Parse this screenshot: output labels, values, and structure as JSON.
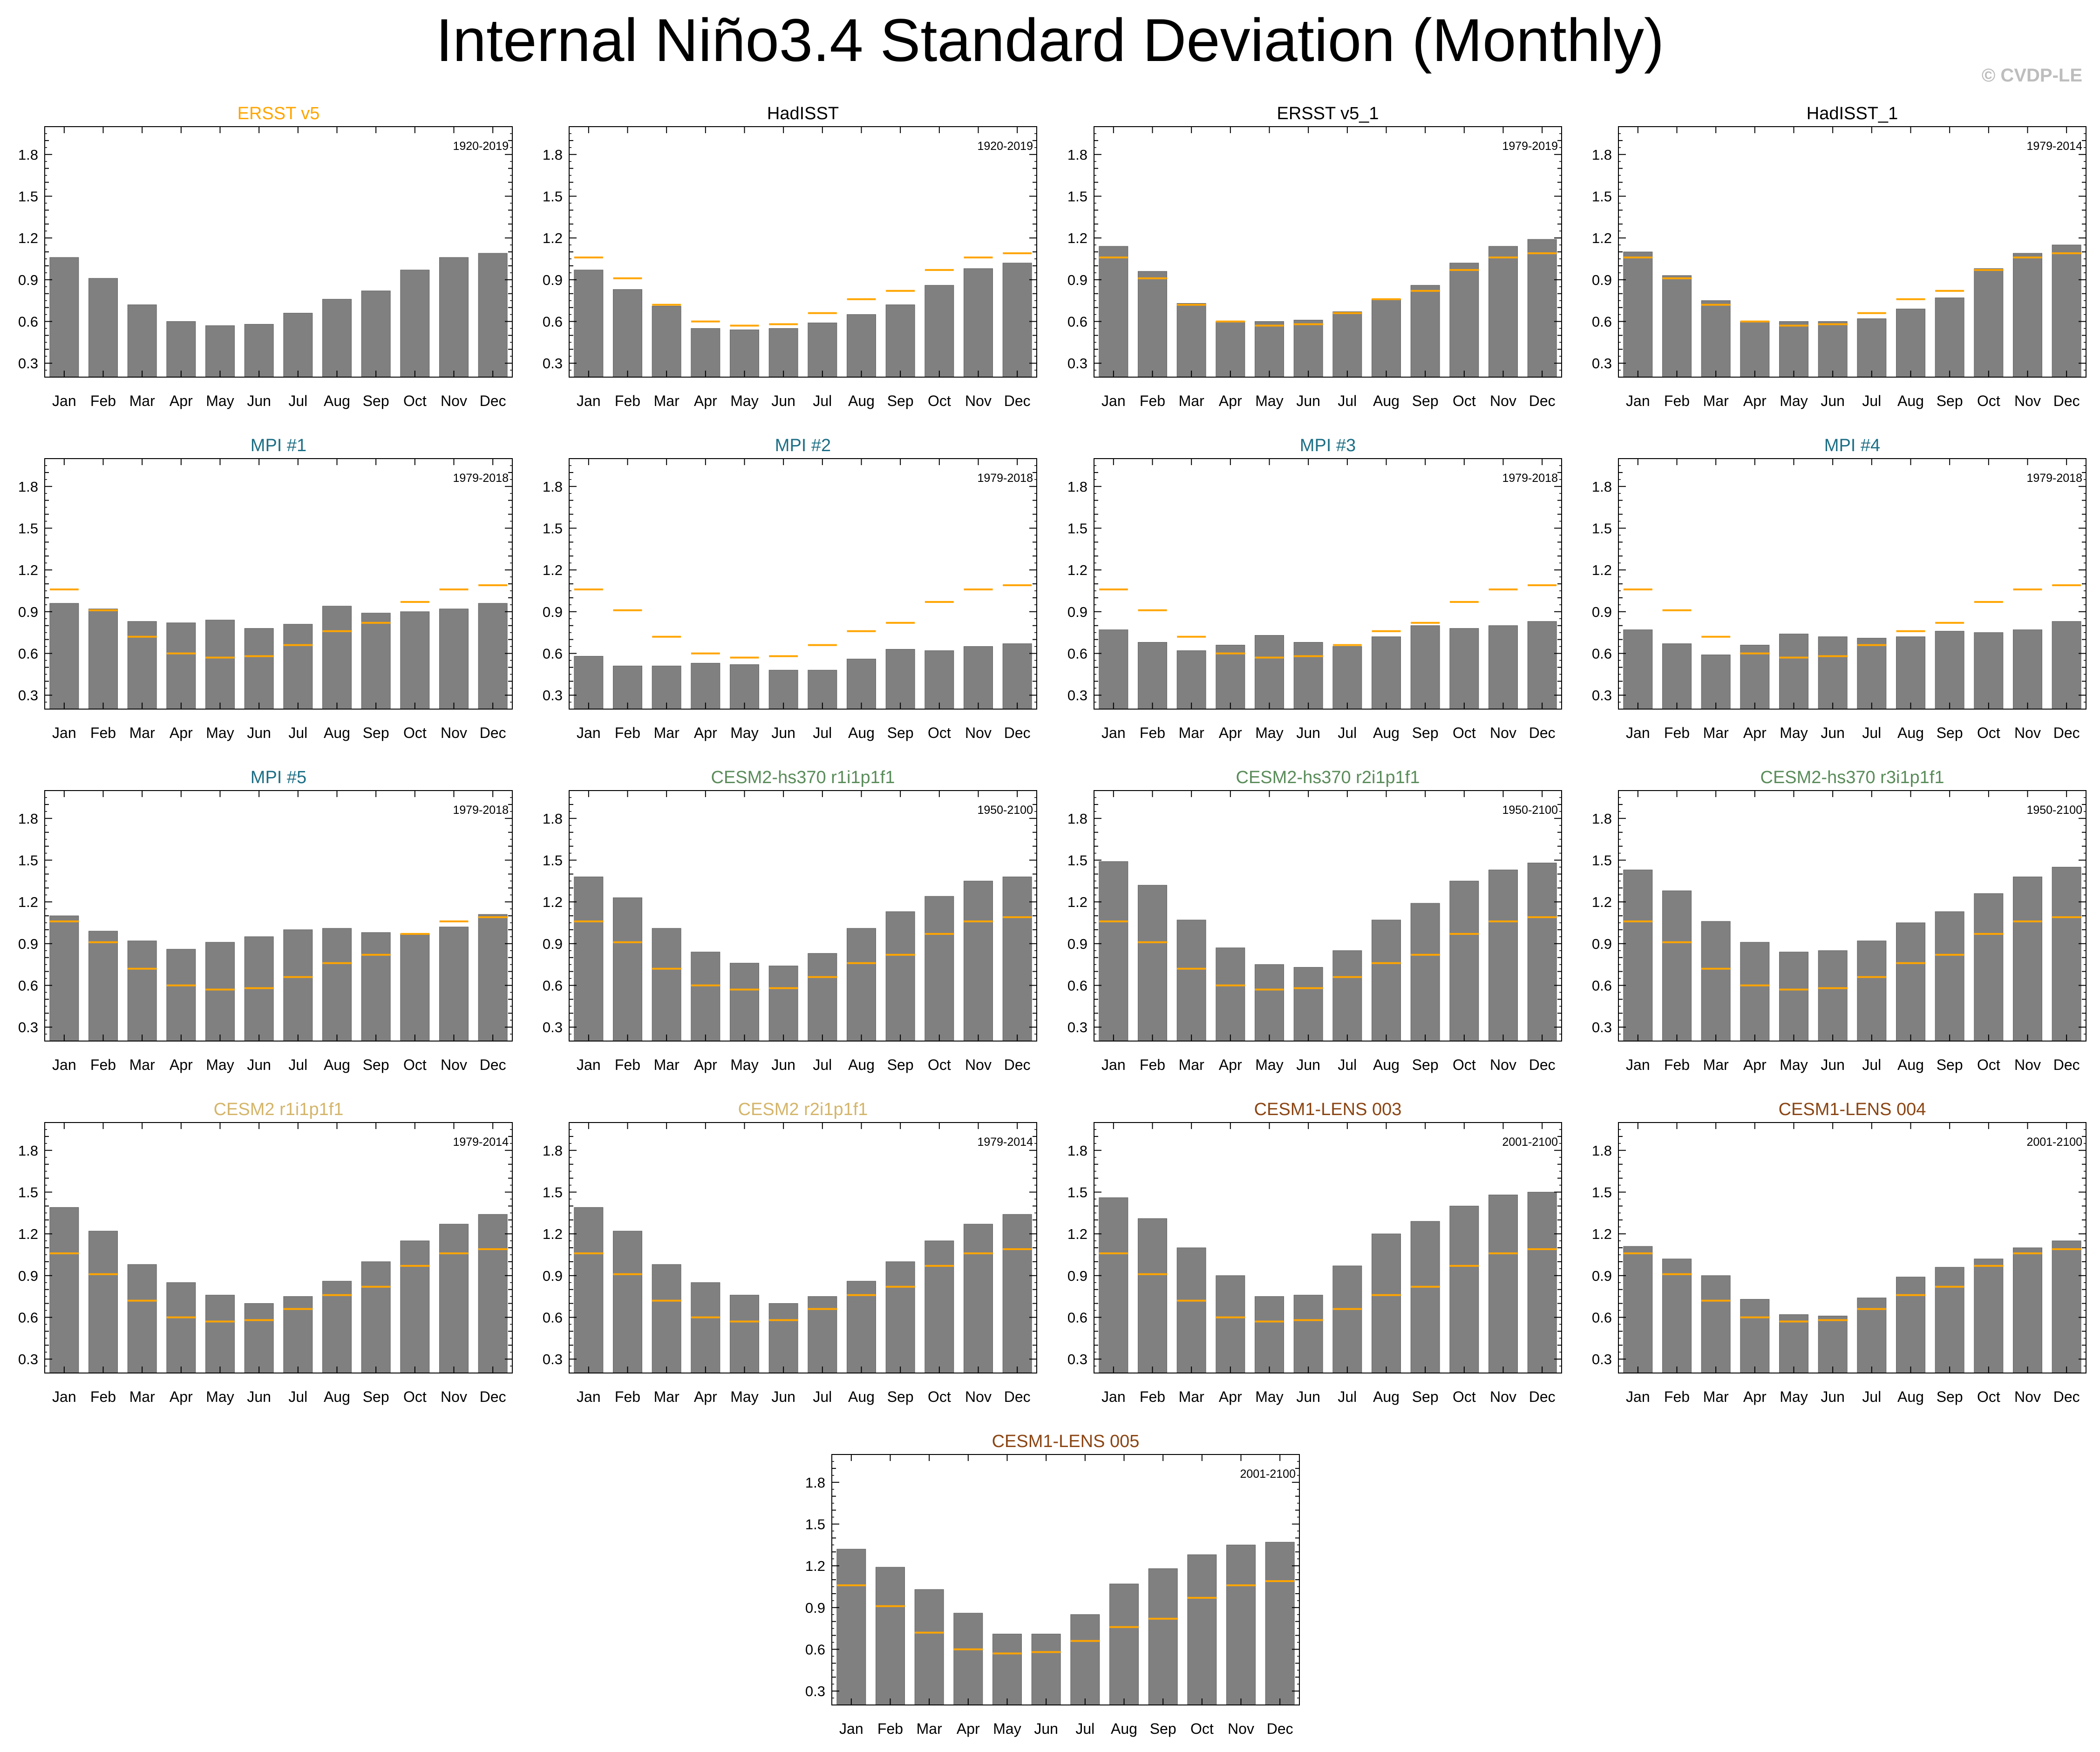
{
  "title": "Internal Niño3.4 Standard Deviation (Monthly)",
  "credit": "© CVDP-LE",
  "colors": {
    "bar": "#808080",
    "bar_edge": "#5e5e5e",
    "obs_line": "#ffa500"
  },
  "chart_data": [
    {
      "type": "bar",
      "title": "ERSST v5",
      "title_color": "#ffa500",
      "period": "1920-2019",
      "categories": [
        "Jan",
        "Feb",
        "Mar",
        "Apr",
        "May",
        "Jun",
        "Jul",
        "Aug",
        "Sep",
        "Oct",
        "Nov",
        "Dec"
      ],
      "ylim": [
        0.2,
        2.0
      ],
      "yticks": [
        "0.3",
        "0.6",
        "0.9",
        "1.2",
        "1.5",
        "1.8"
      ],
      "values": [
        1.06,
        0.91,
        0.72,
        0.6,
        0.57,
        0.58,
        0.66,
        0.76,
        0.82,
        0.97,
        1.06,
        1.09
      ],
      "reference": []
    },
    {
      "type": "bar",
      "title": "HadISST",
      "title_color": "#000000",
      "period": "1920-2019",
      "categories": [
        "Jan",
        "Feb",
        "Mar",
        "Apr",
        "May",
        "Jun",
        "Jul",
        "Aug",
        "Sep",
        "Oct",
        "Nov",
        "Dec"
      ],
      "ylim": [
        0.2,
        2.0
      ],
      "yticks": [
        "0.3",
        "0.6",
        "0.9",
        "1.2",
        "1.5",
        "1.8"
      ],
      "values": [
        0.97,
        0.83,
        0.71,
        0.55,
        0.54,
        0.55,
        0.59,
        0.65,
        0.72,
        0.86,
        0.98,
        1.02
      ],
      "reference": [
        1.06,
        0.91,
        0.72,
        0.6,
        0.57,
        0.58,
        0.66,
        0.76,
        0.82,
        0.97,
        1.06,
        1.09
      ]
    },
    {
      "type": "bar",
      "title": "ERSST v5_1",
      "title_color": "#000000",
      "period": "1979-2019",
      "categories": [
        "Jan",
        "Feb",
        "Mar",
        "Apr",
        "May",
        "Jun",
        "Jul",
        "Aug",
        "Sep",
        "Oct",
        "Nov",
        "Dec"
      ],
      "ylim": [
        0.2,
        2.0
      ],
      "yticks": [
        "0.3",
        "0.6",
        "0.9",
        "1.2",
        "1.5",
        "1.8"
      ],
      "values": [
        1.14,
        0.96,
        0.73,
        0.6,
        0.6,
        0.61,
        0.67,
        0.76,
        0.86,
        1.02,
        1.14,
        1.19
      ],
      "reference": [
        1.06,
        0.91,
        0.72,
        0.6,
        0.57,
        0.58,
        0.66,
        0.76,
        0.82,
        0.97,
        1.06,
        1.09
      ]
    },
    {
      "type": "bar",
      "title": "HadISST_1",
      "title_color": "#000000",
      "period": "1979-2014",
      "categories": [
        "Jan",
        "Feb",
        "Mar",
        "Apr",
        "May",
        "Jun",
        "Jul",
        "Aug",
        "Sep",
        "Oct",
        "Nov",
        "Dec"
      ],
      "ylim": [
        0.2,
        2.0
      ],
      "yticks": [
        "0.3",
        "0.6",
        "0.9",
        "1.2",
        "1.5",
        "1.8"
      ],
      "values": [
        1.1,
        0.93,
        0.75,
        0.6,
        0.6,
        0.6,
        0.62,
        0.69,
        0.77,
        0.98,
        1.09,
        1.15
      ],
      "reference": [
        1.06,
        0.91,
        0.72,
        0.6,
        0.57,
        0.58,
        0.66,
        0.76,
        0.82,
        0.97,
        1.06,
        1.09
      ]
    },
    {
      "type": "bar",
      "title": "MPI #1",
      "title_color": "#1d6f86",
      "period": "1979-2018",
      "categories": [
        "Jan",
        "Feb",
        "Mar",
        "Apr",
        "May",
        "Jun",
        "Jul",
        "Aug",
        "Sep",
        "Oct",
        "Nov",
        "Dec"
      ],
      "ylim": [
        0.2,
        2.0
      ],
      "yticks": [
        "0.3",
        "0.6",
        "0.9",
        "1.2",
        "1.5",
        "1.8"
      ],
      "values": [
        0.96,
        0.92,
        0.83,
        0.82,
        0.84,
        0.78,
        0.81,
        0.94,
        0.89,
        0.9,
        0.92,
        0.96
      ],
      "reference": [
        1.06,
        0.91,
        0.72,
        0.6,
        0.57,
        0.58,
        0.66,
        0.76,
        0.82,
        0.97,
        1.06,
        1.09
      ]
    },
    {
      "type": "bar",
      "title": "MPI #2",
      "title_color": "#1d6f86",
      "period": "1979-2018",
      "categories": [
        "Jan",
        "Feb",
        "Mar",
        "Apr",
        "May",
        "Jun",
        "Jul",
        "Aug",
        "Sep",
        "Oct",
        "Nov",
        "Dec"
      ],
      "ylim": [
        0.2,
        2.0
      ],
      "yticks": [
        "0.3",
        "0.6",
        "0.9",
        "1.2",
        "1.5",
        "1.8"
      ],
      "values": [
        0.58,
        0.51,
        0.51,
        0.53,
        0.52,
        0.48,
        0.48,
        0.56,
        0.63,
        0.62,
        0.65,
        0.67
      ],
      "reference": [
        1.06,
        0.91,
        0.72,
        0.6,
        0.57,
        0.58,
        0.66,
        0.76,
        0.82,
        0.97,
        1.06,
        1.09
      ]
    },
    {
      "type": "bar",
      "title": "MPI #3",
      "title_color": "#1d6f86",
      "period": "1979-2018",
      "categories": [
        "Jan",
        "Feb",
        "Mar",
        "Apr",
        "May",
        "Jun",
        "Jul",
        "Aug",
        "Sep",
        "Oct",
        "Nov",
        "Dec"
      ],
      "ylim": [
        0.2,
        2.0
      ],
      "yticks": [
        "0.3",
        "0.6",
        "0.9",
        "1.2",
        "1.5",
        "1.8"
      ],
      "values": [
        0.77,
        0.68,
        0.62,
        0.66,
        0.73,
        0.68,
        0.65,
        0.72,
        0.8,
        0.78,
        0.8,
        0.83
      ],
      "reference": [
        1.06,
        0.91,
        0.72,
        0.6,
        0.57,
        0.58,
        0.66,
        0.76,
        0.82,
        0.97,
        1.06,
        1.09
      ]
    },
    {
      "type": "bar",
      "title": "MPI #4",
      "title_color": "#1d6f86",
      "period": "1979-2018",
      "categories": [
        "Jan",
        "Feb",
        "Mar",
        "Apr",
        "May",
        "Jun",
        "Jul",
        "Aug",
        "Sep",
        "Oct",
        "Nov",
        "Dec"
      ],
      "ylim": [
        0.2,
        2.0
      ],
      "yticks": [
        "0.3",
        "0.6",
        "0.9",
        "1.2",
        "1.5",
        "1.8"
      ],
      "values": [
        0.77,
        0.67,
        0.59,
        0.66,
        0.74,
        0.72,
        0.71,
        0.72,
        0.76,
        0.75,
        0.77,
        0.83
      ],
      "reference": [
        1.06,
        0.91,
        0.72,
        0.6,
        0.57,
        0.58,
        0.66,
        0.76,
        0.82,
        0.97,
        1.06,
        1.09
      ]
    },
    {
      "type": "bar",
      "title": "MPI #5",
      "title_color": "#1d6f86",
      "period": "1979-2018",
      "categories": [
        "Jan",
        "Feb",
        "Mar",
        "Apr",
        "May",
        "Jun",
        "Jul",
        "Aug",
        "Sep",
        "Oct",
        "Nov",
        "Dec"
      ],
      "ylim": [
        0.2,
        2.0
      ],
      "yticks": [
        "0.3",
        "0.6",
        "0.9",
        "1.2",
        "1.5",
        "1.8"
      ],
      "values": [
        1.1,
        0.99,
        0.92,
        0.86,
        0.91,
        0.95,
        1.0,
        1.01,
        0.98,
        0.97,
        1.02,
        1.11
      ],
      "reference": [
        1.06,
        0.91,
        0.72,
        0.6,
        0.57,
        0.58,
        0.66,
        0.76,
        0.82,
        0.97,
        1.06,
        1.09
      ]
    },
    {
      "type": "bar",
      "title": "CESM2-hs370 r1i1p1f1",
      "title_color": "#5a8c5a",
      "period": "1950-2100",
      "categories": [
        "Jan",
        "Feb",
        "Mar",
        "Apr",
        "May",
        "Jun",
        "Jul",
        "Aug",
        "Sep",
        "Oct",
        "Nov",
        "Dec"
      ],
      "ylim": [
        0.2,
        2.0
      ],
      "yticks": [
        "0.3",
        "0.6",
        "0.9",
        "1.2",
        "1.5",
        "1.8"
      ],
      "values": [
        1.38,
        1.23,
        1.01,
        0.84,
        0.76,
        0.74,
        0.83,
        1.01,
        1.13,
        1.24,
        1.35,
        1.38
      ],
      "reference": [
        1.06,
        0.91,
        0.72,
        0.6,
        0.57,
        0.58,
        0.66,
        0.76,
        0.82,
        0.97,
        1.06,
        1.09
      ]
    },
    {
      "type": "bar",
      "title": "CESM2-hs370 r2i1p1f1",
      "title_color": "#5a8c5a",
      "period": "1950-2100",
      "categories": [
        "Jan",
        "Feb",
        "Mar",
        "Apr",
        "May",
        "Jun",
        "Jul",
        "Aug",
        "Sep",
        "Oct",
        "Nov",
        "Dec"
      ],
      "ylim": [
        0.2,
        2.0
      ],
      "yticks": [
        "0.3",
        "0.6",
        "0.9",
        "1.2",
        "1.5",
        "1.8"
      ],
      "values": [
        1.49,
        1.32,
        1.07,
        0.87,
        0.75,
        0.73,
        0.85,
        1.07,
        1.19,
        1.35,
        1.43,
        1.48
      ],
      "reference": [
        1.06,
        0.91,
        0.72,
        0.6,
        0.57,
        0.58,
        0.66,
        0.76,
        0.82,
        0.97,
        1.06,
        1.09
      ]
    },
    {
      "type": "bar",
      "title": "CESM2-hs370 r3i1p1f1",
      "title_color": "#5a8c5a",
      "period": "1950-2100",
      "categories": [
        "Jan",
        "Feb",
        "Mar",
        "Apr",
        "May",
        "Jun",
        "Jul",
        "Aug",
        "Sep",
        "Oct",
        "Nov",
        "Dec"
      ],
      "ylim": [
        0.2,
        2.0
      ],
      "yticks": [
        "0.3",
        "0.6",
        "0.9",
        "1.2",
        "1.5",
        "1.8"
      ],
      "values": [
        1.43,
        1.28,
        1.06,
        0.91,
        0.84,
        0.85,
        0.92,
        1.05,
        1.13,
        1.26,
        1.38,
        1.45
      ],
      "reference": [
        1.06,
        0.91,
        0.72,
        0.6,
        0.57,
        0.58,
        0.66,
        0.76,
        0.82,
        0.97,
        1.06,
        1.09
      ]
    },
    {
      "type": "bar",
      "title": "CESM2 r1i1p1f1",
      "title_color": "#d4b56a",
      "period": "1979-2014",
      "categories": [
        "Jan",
        "Feb",
        "Mar",
        "Apr",
        "May",
        "Jun",
        "Jul",
        "Aug",
        "Sep",
        "Oct",
        "Nov",
        "Dec"
      ],
      "ylim": [
        0.2,
        2.0
      ],
      "yticks": [
        "0.3",
        "0.6",
        "0.9",
        "1.2",
        "1.5",
        "1.8"
      ],
      "values": [
        1.39,
        1.22,
        0.98,
        0.85,
        0.76,
        0.7,
        0.75,
        0.86,
        1.0,
        1.15,
        1.27,
        1.34
      ],
      "reference": [
        1.06,
        0.91,
        0.72,
        0.6,
        0.57,
        0.58,
        0.66,
        0.76,
        0.82,
        0.97,
        1.06,
        1.09
      ]
    },
    {
      "type": "bar",
      "title": "CESM2 r2i1p1f1",
      "title_color": "#d4b56a",
      "period": "1979-2014",
      "categories": [
        "Jan",
        "Feb",
        "Mar",
        "Apr",
        "May",
        "Jun",
        "Jul",
        "Aug",
        "Sep",
        "Oct",
        "Nov",
        "Dec"
      ],
      "ylim": [
        0.2,
        2.0
      ],
      "yticks": [
        "0.3",
        "0.6",
        "0.9",
        "1.2",
        "1.5",
        "1.8"
      ],
      "values": [
        1.39,
        1.22,
        0.98,
        0.85,
        0.76,
        0.7,
        0.75,
        0.86,
        1.0,
        1.15,
        1.27,
        1.34
      ],
      "reference": [
        1.06,
        0.91,
        0.72,
        0.6,
        0.57,
        0.58,
        0.66,
        0.76,
        0.82,
        0.97,
        1.06,
        1.09
      ]
    },
    {
      "type": "bar",
      "title": "CESM1-LENS 003",
      "title_color": "#8b4513",
      "period": "2001-2100",
      "categories": [
        "Jan",
        "Feb",
        "Mar",
        "Apr",
        "May",
        "Jun",
        "Jul",
        "Aug",
        "Sep",
        "Oct",
        "Nov",
        "Dec"
      ],
      "ylim": [
        0.2,
        2.0
      ],
      "yticks": [
        "0.3",
        "0.6",
        "0.9",
        "1.2",
        "1.5",
        "1.8"
      ],
      "values": [
        1.46,
        1.31,
        1.1,
        0.9,
        0.75,
        0.76,
        0.97,
        1.2,
        1.29,
        1.4,
        1.48,
        1.5
      ],
      "reference": [
        1.06,
        0.91,
        0.72,
        0.6,
        0.57,
        0.58,
        0.66,
        0.76,
        0.82,
        0.97,
        1.06,
        1.09
      ]
    },
    {
      "type": "bar",
      "title": "CESM1-LENS 004",
      "title_color": "#8b4513",
      "period": "2001-2100",
      "categories": [
        "Jan",
        "Feb",
        "Mar",
        "Apr",
        "May",
        "Jun",
        "Jul",
        "Aug",
        "Sep",
        "Oct",
        "Nov",
        "Dec"
      ],
      "ylim": [
        0.2,
        2.0
      ],
      "yticks": [
        "0.3",
        "0.6",
        "0.9",
        "1.2",
        "1.5",
        "1.8"
      ],
      "values": [
        1.11,
        1.02,
        0.9,
        0.73,
        0.62,
        0.61,
        0.74,
        0.89,
        0.96,
        1.02,
        1.1,
        1.15
      ],
      "reference": [
        1.06,
        0.91,
        0.72,
        0.6,
        0.57,
        0.58,
        0.66,
        0.76,
        0.82,
        0.97,
        1.06,
        1.09
      ]
    },
    {
      "type": "bar",
      "title": "CESM1-LENS 005",
      "title_color": "#8b4513",
      "period": "2001-2100",
      "categories": [
        "Jan",
        "Feb",
        "Mar",
        "Apr",
        "May",
        "Jun",
        "Jul",
        "Aug",
        "Sep",
        "Oct",
        "Nov",
        "Dec"
      ],
      "ylim": [
        0.2,
        2.0
      ],
      "yticks": [
        "0.3",
        "0.6",
        "0.9",
        "1.2",
        "1.5",
        "1.8"
      ],
      "values": [
        1.32,
        1.19,
        1.03,
        0.86,
        0.71,
        0.71,
        0.85,
        1.07,
        1.18,
        1.28,
        1.35,
        1.37
      ],
      "reference": [
        1.06,
        0.91,
        0.72,
        0.6,
        0.57,
        0.58,
        0.66,
        0.76,
        0.82,
        0.97,
        1.06,
        1.09
      ]
    }
  ]
}
